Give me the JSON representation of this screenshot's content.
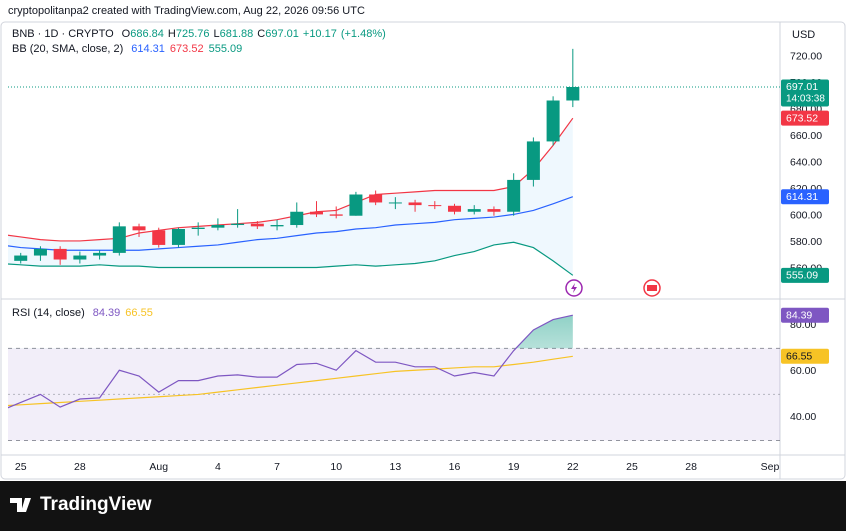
{
  "header": "cryptopolitanpa2 created with TradingView.com, Aug 22, 2026 09:56 UTC",
  "currency": "USD",
  "brand": "TradingView",
  "chart_data": [
    {
      "type": "candlestick",
      "name": "BNB · 1D · CRYPTO",
      "x": [
        "2026-07-24",
        "2026-07-25",
        "2026-07-26",
        "2026-07-27",
        "2026-07-28",
        "2026-07-29",
        "2026-07-30",
        "2026-07-31",
        "2026-08-01",
        "2026-08-02",
        "2026-08-03",
        "2026-08-04",
        "2026-08-05",
        "2026-08-06",
        "2026-08-07",
        "2026-08-08",
        "2026-08-09",
        "2026-08-10",
        "2026-08-11",
        "2026-08-12",
        "2026-08-13",
        "2026-08-14",
        "2026-08-15",
        "2026-08-16",
        "2026-08-17",
        "2026-08-18",
        "2026-08-19",
        "2026-08-20",
        "2026-08-21",
        "2026-08-22"
      ],
      "open": [
        564,
        566,
        570,
        575,
        567,
        570,
        572,
        592,
        589,
        578,
        590,
        591,
        593,
        594,
        592,
        593,
        603,
        601,
        600,
        616,
        610,
        610,
        608,
        607.5,
        603,
        605,
        603,
        627,
        656,
        686.84
      ],
      "high": [
        568,
        572,
        577,
        577,
        573,
        574,
        595,
        594,
        591,
        591,
        595,
        598,
        605,
        596,
        597,
        610,
        611,
        607,
        618,
        619,
        614,
        612,
        611,
        609,
        608,
        607,
        632,
        659,
        690,
        725.76
      ],
      "low": [
        562,
        564,
        566,
        563,
        564,
        567,
        570,
        584,
        576,
        576,
        585,
        589,
        591,
        590,
        589,
        591,
        599,
        598,
        600,
        608,
        605,
        603,
        605,
        601,
        601,
        600,
        600,
        622,
        653,
        681.88
      ],
      "close": [
        566,
        570,
        575,
        567,
        570,
        572,
        592,
        589,
        578,
        590,
        591,
        593,
        594,
        592,
        593,
        603,
        601,
        600,
        616,
        610,
        610,
        608,
        607.5,
        603,
        605,
        603,
        627,
        656,
        686.84,
        697.01
      ],
      "legend_prefixes": [
        "O",
        "H",
        "L",
        "C"
      ],
      "change": {
        "value": 10.17,
        "label": "+10.17"
      },
      "change_pct": {
        "value": 1.48,
        "label": "(+1.48%)"
      },
      "countdown": "14:03:38",
      "up_color": "#089981",
      "down_color": "#f23645",
      "indicator": {
        "name": "BB (20, SMA, close, 2)",
        "fill": "#2196f3",
        "series": [
          {
            "color": "#2962ff",
            "values": [
              578,
              576,
              575,
              574,
              574,
              574,
              574,
              574,
              575,
              576,
              577,
              578,
              580,
              582,
              583,
              585,
              587,
              588,
              590,
              591,
              593,
              594,
              595,
              597,
              598,
              599,
              601,
              604,
              609,
              614.31
            ]
          },
          {
            "color": "#f23645",
            "values": [
              586,
              584,
              582,
              581,
              581,
              582,
              583,
              587,
              589,
              591,
              592,
              593,
              594,
              595,
              597,
              600,
              603,
              604,
              610,
              616,
              617,
              618,
              619,
              619,
              619,
              619,
              622,
              635,
              653,
              673.52
            ]
          },
          {
            "color": "#089981",
            "values": [
              564,
              563,
              562,
              562,
              562,
              563,
              562,
              562,
              561,
              561,
              561,
              561,
              561,
              561,
              561,
              561,
              561,
              562,
              563,
              562,
              563,
              564,
              566,
              570,
              573,
              578,
              580,
              576,
              566,
              555.09
            ]
          }
        ]
      },
      "xlim": [
        "2026-07-24",
        "2026-09-01"
      ],
      "xticks": [
        {
          "value": "2026-07-25",
          "label": "25"
        },
        {
          "value": "2026-07-28",
          "label": "28"
        },
        {
          "value": "2026-08-01",
          "label": "Aug"
        },
        {
          "value": "2026-08-04",
          "label": "4"
        },
        {
          "value": "2026-08-07",
          "label": "7"
        },
        {
          "value": "2026-08-10",
          "label": "10"
        },
        {
          "value": "2026-08-13",
          "label": "13"
        },
        {
          "value": "2026-08-16",
          "label": "16"
        },
        {
          "value": "2026-08-19",
          "label": "19"
        },
        {
          "value": "2026-08-22",
          "label": "22"
        },
        {
          "value": "2026-08-25",
          "label": "25"
        },
        {
          "value": "2026-08-28",
          "label": "28"
        },
        {
          "value": "2026-09-01",
          "label": "Sep"
        }
      ],
      "ylim": [
        538,
        746
      ],
      "yticks": [
        {
          "value": 560,
          "label": "560.00"
        },
        {
          "value": 580,
          "label": "580.00"
        },
        {
          "value": 600,
          "label": "600.00"
        },
        {
          "value": 620,
          "label": "620.00"
        },
        {
          "value": 640,
          "label": "640.00"
        },
        {
          "value": 660,
          "label": "660.00"
        },
        {
          "value": 680,
          "label": "680.00"
        },
        {
          "value": 700,
          "label": "700.00"
        },
        {
          "value": 720,
          "label": "720.00"
        }
      ],
      "grid": false
    },
    {
      "type": "line",
      "name": "RSI (14, close)",
      "x": [
        "2026-07-24",
        "2026-07-25",
        "2026-07-26",
        "2026-07-27",
        "2026-07-28",
        "2026-07-29",
        "2026-07-30",
        "2026-07-31",
        "2026-08-01",
        "2026-08-02",
        "2026-08-03",
        "2026-08-04",
        "2026-08-05",
        "2026-08-06",
        "2026-08-07",
        "2026-08-08",
        "2026-08-09",
        "2026-08-10",
        "2026-08-11",
        "2026-08-12",
        "2026-08-13",
        "2026-08-14",
        "2026-08-15",
        "2026-08-16",
        "2026-08-17",
        "2026-08-18",
        "2026-08-19",
        "2026-08-20",
        "2026-08-21",
        "2026-08-22"
      ],
      "series": [
        {
          "color": "#7e57c2",
          "values": [
            43,
            46.5,
            50,
            44.5,
            48,
            48.5,
            60.5,
            58,
            51,
            56,
            56,
            58,
            58.5,
            57.5,
            57.5,
            63,
            63.5,
            60.5,
            69,
            64,
            64,
            62,
            62,
            58,
            59.5,
            58,
            69,
            78,
            82.5,
            84.39
          ]
        },
        {
          "color": "#f7c325",
          "values": [
            45,
            45.5,
            46,
            46.5,
            47,
            47.5,
            48,
            48.5,
            49,
            49.5,
            50,
            51,
            52,
            53,
            54,
            55,
            56,
            57,
            58,
            59,
            60,
            60.5,
            61,
            61.5,
            62,
            62,
            63,
            64,
            65.3,
            66.55
          ]
        }
      ],
      "bands": [
        30,
        50,
        70
      ],
      "ylim": [
        25,
        91
      ],
      "yticks": [
        {
          "value": 40,
          "label": "40.00"
        },
        {
          "value": 60,
          "label": "60.00"
        },
        {
          "value": 80,
          "label": "80.00"
        }
      ],
      "grid": false
    }
  ]
}
